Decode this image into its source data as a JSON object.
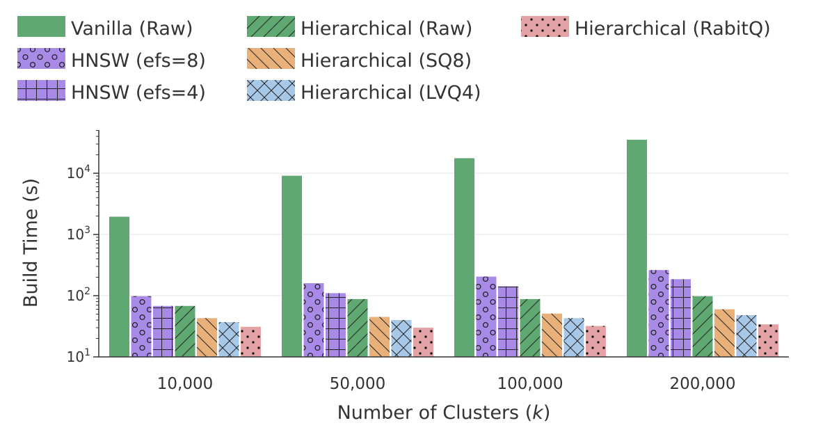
{
  "chart_data": {
    "type": "bar",
    "xlabel_prefix": "Number of Clusters (",
    "xlabel_var": "k",
    "xlabel_suffix": ")",
    "ylabel": "Build Time (s)",
    "yscale": "log",
    "ylim": [
      10,
      50000
    ],
    "yticks": [
      {
        "value": 10,
        "base": "10",
        "exp": "1"
      },
      {
        "value": 100,
        "base": "10",
        "exp": "2"
      },
      {
        "value": 1000,
        "base": "10",
        "exp": "3"
      },
      {
        "value": 10000,
        "base": "10",
        "exp": "4"
      }
    ],
    "grid": true,
    "legend_position": "top",
    "categories": [
      "10,000",
      "50,000",
      "100,000",
      "200,000"
    ],
    "series": [
      {
        "name": "Vanilla (Raw)",
        "color": "#5fa871",
        "pattern": "solid",
        "values": [
          1950,
          9100,
          17600,
          35300
        ]
      },
      {
        "name": "HNSW (efs=8)",
        "color": "#a98ae6",
        "pattern": "circles",
        "values": [
          98,
          160,
          205,
          262
        ]
      },
      {
        "name": "HNSW (efs=4)",
        "color": "#a98ae6",
        "pattern": "grid",
        "values": [
          68,
          110,
          142,
          186
        ]
      },
      {
        "name": "Hierarchical (Raw)",
        "color": "#5fa871",
        "pattern": "slash",
        "values": [
          68,
          88,
          88,
          98
        ]
      },
      {
        "name": "Hierarchical (SQ8)",
        "color": "#e9b07a",
        "pattern": "backslash",
        "values": [
          43,
          45,
          51,
          60
        ]
      },
      {
        "name": "Hierarchical (LVQ4)",
        "color": "#a8c8e8",
        "pattern": "cross",
        "values": [
          37,
          40,
          43,
          48
        ]
      },
      {
        "name": "Hierarchical (RabitQ)",
        "color": "#e5a2a4",
        "pattern": "dots",
        "values": [
          31,
          30,
          32,
          34
        ]
      }
    ]
  }
}
